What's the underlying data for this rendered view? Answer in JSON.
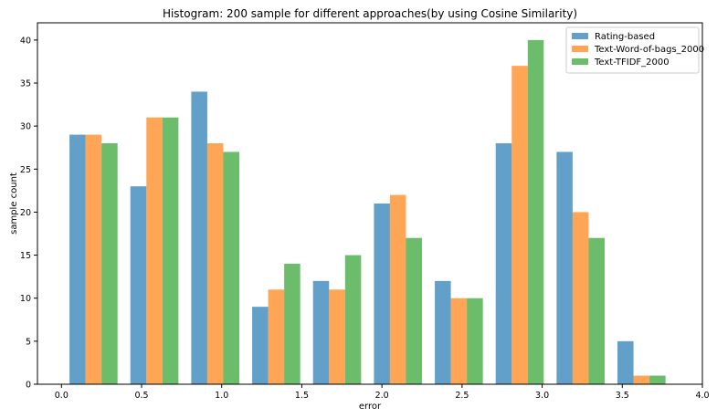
{
  "chart_data": {
    "type": "bar",
    "title": "Histogram: 200 sample for different approaches(by using Cosine Similarity)",
    "xlabel": "error",
    "ylabel": "sample count",
    "xlim": [
      -0.15,
      4.0
    ],
    "ylim": [
      0,
      42
    ],
    "xticks": [
      "0.0",
      "0.5",
      "1.0",
      "1.5",
      "2.0",
      "2.5",
      "3.0",
      "3.5",
      "4.0"
    ],
    "yticks": [
      "0",
      "5",
      "10",
      "15",
      "20",
      "25",
      "30",
      "35",
      "40"
    ],
    "bin_centers": [
      0.2,
      0.58,
      0.96,
      1.34,
      1.72,
      2.1,
      2.48,
      2.86,
      3.24,
      3.62
    ],
    "series": [
      {
        "name": "Rating-based",
        "color": "#1f77b4",
        "values": [
          29,
          23,
          34,
          9,
          12,
          21,
          12,
          28,
          27,
          5
        ]
      },
      {
        "name": "Text-Word-of-bags_2000",
        "color": "#ff7f0e",
        "values": [
          29,
          31,
          28,
          11,
          11,
          22,
          10,
          37,
          20,
          1
        ]
      },
      {
        "name": "Text-TFIDF_2000",
        "color": "#2ca02c",
        "values": [
          28,
          31,
          27,
          14,
          15,
          17,
          10,
          40,
          17,
          1
        ]
      }
    ],
    "grid": false,
    "legend": "top-right"
  }
}
